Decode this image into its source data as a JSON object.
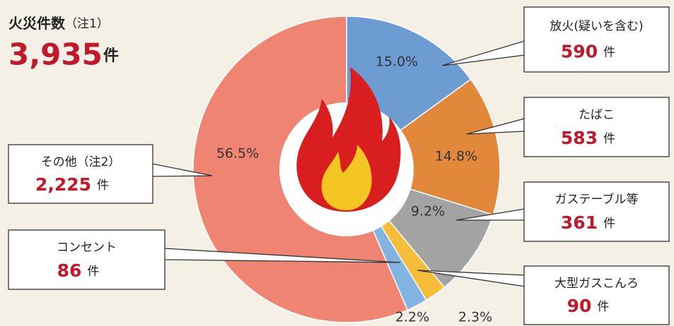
{
  "chart_data": {
    "type": "pie",
    "title": "火災件数",
    "title_note": "（注1）",
    "total": {
      "value": 3935,
      "label": "3,935"
    },
    "unit": "件",
    "categories": [
      "放火(疑いを含む)",
      "たばこ",
      "ガステーブル等",
      "大型ガスこんろ",
      "コンセント",
      "その他（注2）"
    ],
    "values": [
      15.0,
      14.8,
      9.2,
      2.3,
      2.2,
      56.5
    ],
    "value_labels": [
      "15.0%",
      "14.8%",
      "9.2%",
      "2.3%",
      "2.2%",
      "56.5%"
    ],
    "counts": [
      590,
      583,
      361,
      90,
      86,
      {
        "value": 2225,
        "label": "2,225"
      }
    ],
    "colors": [
      "#6d9cd3",
      "#e2883b",
      "#a3a3a3",
      "#f6bd3b",
      "#82b3e1",
      "#f08472"
    ]
  }
}
